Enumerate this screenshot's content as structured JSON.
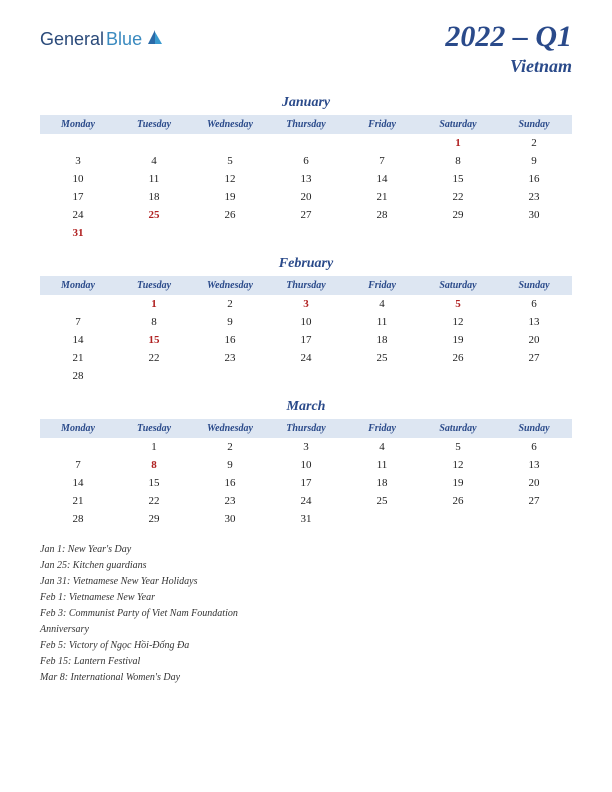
{
  "logo": {
    "part1": "General",
    "part2": "Blue"
  },
  "title": {
    "period": "2022 – Q1",
    "country": "Vietnam"
  },
  "calendar": {
    "day_headers": [
      "Monday",
      "Tuesday",
      "Wednesday",
      "Thursday",
      "Friday",
      "Saturday",
      "Sunday"
    ],
    "header_bg": "#dde6f2",
    "header_color": "#2a4a8a",
    "holiday_color": "#b02020",
    "text_color": "#222222",
    "months": [
      {
        "name": "January",
        "weeks": [
          [
            "",
            "",
            "",
            "",
            "",
            "1",
            "2"
          ],
          [
            "3",
            "4",
            "5",
            "6",
            "7",
            "8",
            "9"
          ],
          [
            "10",
            "11",
            "12",
            "13",
            "14",
            "15",
            "16"
          ],
          [
            "17",
            "18",
            "19",
            "20",
            "21",
            "22",
            "23"
          ],
          [
            "24",
            "25",
            "26",
            "27",
            "28",
            "29",
            "30"
          ],
          [
            "31",
            "",
            "",
            "",
            "",
            "",
            ""
          ]
        ],
        "holidays": [
          "1",
          "25",
          "31"
        ]
      },
      {
        "name": "February",
        "weeks": [
          [
            "",
            "1",
            "2",
            "3",
            "4",
            "5",
            "6"
          ],
          [
            "7",
            "8",
            "9",
            "10",
            "11",
            "12",
            "13"
          ],
          [
            "14",
            "15",
            "16",
            "17",
            "18",
            "19",
            "20"
          ],
          [
            "21",
            "22",
            "23",
            "24",
            "25",
            "26",
            "27"
          ],
          [
            "28",
            "",
            "",
            "",
            "",
            "",
            ""
          ]
        ],
        "holidays": [
          "1",
          "3",
          "5",
          "15"
        ]
      },
      {
        "name": "March",
        "weeks": [
          [
            "",
            "1",
            "2",
            "3",
            "4",
            "5",
            "6"
          ],
          [
            "7",
            "8",
            "9",
            "10",
            "11",
            "12",
            "13"
          ],
          [
            "14",
            "15",
            "16",
            "17",
            "18",
            "19",
            "20"
          ],
          [
            "21",
            "22",
            "23",
            "24",
            "25",
            "26",
            "27"
          ],
          [
            "28",
            "29",
            "30",
            "31",
            "",
            "",
            ""
          ]
        ],
        "holidays": [
          "8"
        ]
      }
    ]
  },
  "holiday_list": [
    "Jan 1: New Year's Day",
    "Jan 25: Kitchen guardians",
    "Jan 31: Vietnamese New Year Holidays",
    "Feb 1: Vietnamese New Year",
    "Feb 3: Communist Party of Viet Nam Foundation",
    "Anniversary",
    "Feb 5: Victory of Ngọc Hồi-Đống Đa",
    "Feb 15: Lantern Festival",
    "Mar 8: International Women's Day"
  ]
}
